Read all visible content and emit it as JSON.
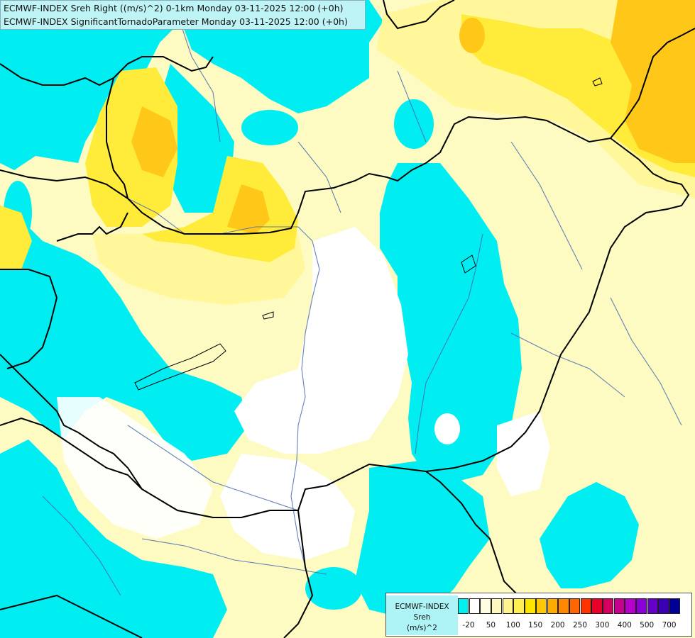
{
  "title": {
    "line1": "ECMWF-INDEX Sreh Right ((m/s)^2) 0-1km Monday 03-11-2025 12:00 (+0h)",
    "line2": "ECMWF-INDEX SignificantTornadoParameter Monday 03-11-2025 12:00 (+0h)"
  },
  "legend": {
    "title1": "ECMWF-INDEX",
    "title2": "Sreh",
    "title3": "(m/s)^2",
    "colors": [
      "#00f0f0",
      "#ffffff",
      "#fffde0",
      "#fff9c0",
      "#fff48f",
      "#ffee52",
      "#ffe400",
      "#ffc800",
      "#ffaa00",
      "#ff8800",
      "#ff6600",
      "#ff3300",
      "#e8002a",
      "#d40060",
      "#c80090",
      "#b400c8",
      "#8c00d8",
      "#6400c8",
      "#3c00b4",
      "#000096"
    ],
    "ticks": [
      "-20",
      "50",
      "100",
      "150",
      "200",
      "250",
      "300",
      "400",
      "500",
      "700"
    ]
  },
  "palette": {
    "cyan": "#00eef2",
    "white": "#ffffff",
    "pale": "#fdfbc2",
    "light_yellow": "#fff79a",
    "yellow": "#ffec3a",
    "gold": "#ffd21a",
    "orange": "#ffc010",
    "border": "#000000",
    "river": "#4a6ab0"
  }
}
